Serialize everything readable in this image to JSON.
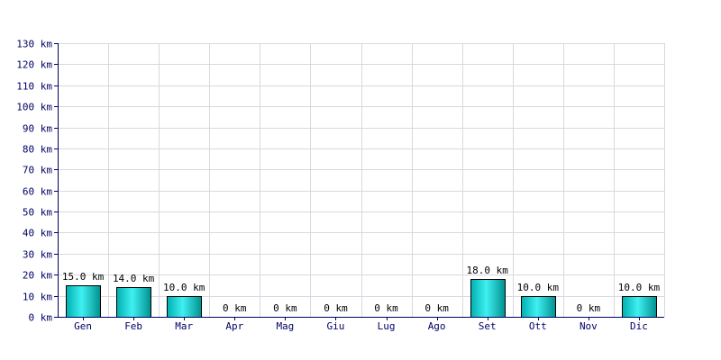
{
  "chart_data": {
    "type": "bar",
    "categories": [
      "Gen",
      "Feb",
      "Mar",
      "Apr",
      "Mag",
      "Giu",
      "Lug",
      "Ago",
      "Set",
      "Ott",
      "Nov",
      "Dic"
    ],
    "values": [
      15,
      14,
      10,
      0,
      0,
      0,
      0,
      0,
      18,
      10,
      0,
      10
    ],
    "value_labels": [
      "15.0 km",
      "14.0 km",
      "10.0 km",
      "0 km",
      "0 km",
      "0 km",
      "0 km",
      "0 km",
      "18.0 km",
      "10.0 km",
      "0 km",
      "10.0 km"
    ],
    "y_ticks": [
      0,
      10,
      20,
      30,
      40,
      50,
      60,
      70,
      80,
      90,
      100,
      110,
      120,
      130
    ],
    "y_tick_labels": [
      "0 km",
      "10 km",
      "20 km",
      "30 km",
      "40 km",
      "50 km",
      "60 km",
      "70 km",
      "80 km",
      "90 km",
      "100 km",
      "110 km",
      "120 km",
      "130 km"
    ],
    "ylim": [
      0,
      130
    ],
    "grid": true,
    "title": "",
    "xlabel": "",
    "ylabel": "",
    "colors": {
      "bar_light": "#40f0f0",
      "bar_dark": "#00a8a8",
      "bar_border": "#000000",
      "grid": "#d8d8e0",
      "axis": "#000066",
      "text": "#000066"
    }
  }
}
